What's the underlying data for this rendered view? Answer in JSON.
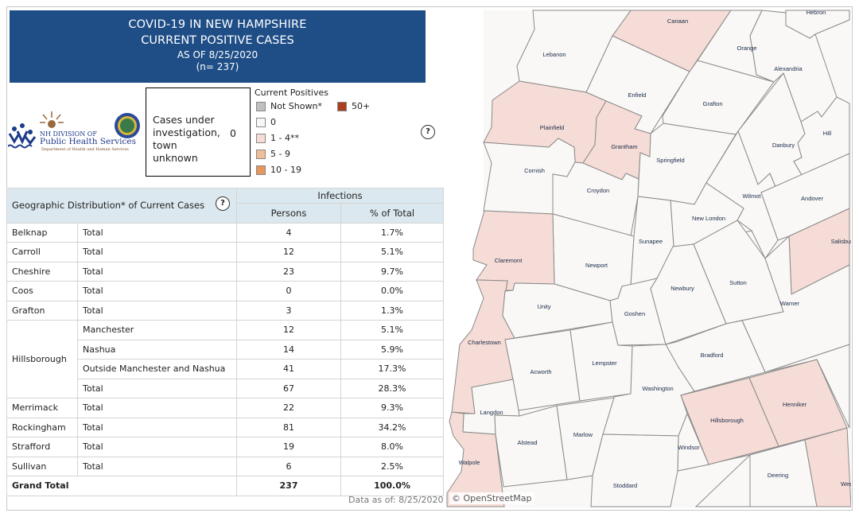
{
  "header": {
    "line1": "COVID-19 IN NEW HAMPSHIRE",
    "line2": "CURRENT POSITIVE CASES",
    "line3": "AS OF 8/25/2020",
    "line4": "(n= 237)"
  },
  "logo": {
    "line1": "NH DIVISION OF",
    "line2": "Public Health Services",
    "line3": "Department of Health and Human Services"
  },
  "investigation": {
    "label": "Cases under investigation, town unknown",
    "value": "0"
  },
  "legend": {
    "title": "Current Positives",
    "items": [
      {
        "label": "Not Shown*",
        "color": "#c0c0c0"
      },
      {
        "label": "0",
        "color": "#f9f8f6"
      },
      {
        "label": "1 - 4**",
        "color": "#f6dcd6"
      },
      {
        "label": "5 - 9",
        "color": "#f0bf97"
      },
      {
        "label": "10 - 19",
        "color": "#e8965a"
      },
      {
        "label": "50+",
        "color": "#a9401f"
      }
    ]
  },
  "help_icon": "?",
  "table": {
    "title": "Geographic Distribution* of Current Cases",
    "group_header": "Infections",
    "col_persons": "Persons",
    "col_pct": "% of Total",
    "rows": [
      {
        "county": "Belknap",
        "sub": "Total",
        "persons": "4",
        "pct": "1.7%"
      },
      {
        "county": "Carroll",
        "sub": "Total",
        "persons": "12",
        "pct": "5.1%"
      },
      {
        "county": "Cheshire",
        "sub": "Total",
        "persons": "23",
        "pct": "9.7%"
      },
      {
        "county": "Coos",
        "sub": "Total",
        "persons": "0",
        "pct": "0.0%"
      },
      {
        "county": "Grafton",
        "sub": "Total",
        "persons": "3",
        "pct": "1.3%"
      },
      {
        "county": "Hillsborough",
        "sub": "Manchester",
        "persons": "12",
        "pct": "5.1%"
      },
      {
        "county": "",
        "sub": "Nashua",
        "persons": "14",
        "pct": "5.9%"
      },
      {
        "county": "",
        "sub": "Outside Manchester and Nashua",
        "persons": "41",
        "pct": "17.3%"
      },
      {
        "county": "",
        "sub": "Total",
        "persons": "67",
        "pct": "28.3%"
      },
      {
        "county": "Merrimack",
        "sub": "Total",
        "persons": "22",
        "pct": "9.3%"
      },
      {
        "county": "Rockingham",
        "sub": "Total",
        "persons": "81",
        "pct": "34.2%"
      },
      {
        "county": "Strafford",
        "sub": "Total",
        "persons": "19",
        "pct": "8.0%"
      },
      {
        "county": "Sullivan",
        "sub": "Total",
        "persons": "6",
        "pct": "2.5%"
      }
    ],
    "grand_total": {
      "label": "Grand Total",
      "persons": "237",
      "pct": "100.0%"
    }
  },
  "data_as_of": "Data as of:  8/25/2020",
  "map": {
    "attribution": "© OpenStreetMap",
    "towns": [
      {
        "name": "Canaan",
        "cat": "1 - 4**"
      },
      {
        "name": "Lebanon",
        "cat": "0"
      },
      {
        "name": "Enfield",
        "cat": "0"
      },
      {
        "name": "Plainfield",
        "cat": "1 - 4**"
      },
      {
        "name": "Grantham",
        "cat": "1 - 4**"
      },
      {
        "name": "Cornish",
        "cat": "0"
      },
      {
        "name": "Croydon",
        "cat": "0"
      },
      {
        "name": "Springfield",
        "cat": "0"
      },
      {
        "name": "Grafton",
        "cat": "0"
      },
      {
        "name": "Orange",
        "cat": "0"
      },
      {
        "name": "Alexandria",
        "cat": "0"
      },
      {
        "name": "Hebron",
        "cat": "0"
      },
      {
        "name": "Danbury",
        "cat": "0"
      },
      {
        "name": "Hill",
        "cat": "0"
      },
      {
        "name": "Wilmot",
        "cat": "0"
      },
      {
        "name": "Andover",
        "cat": "0"
      },
      {
        "name": "Salisbury",
        "cat": "1 - 4**"
      },
      {
        "name": "New London",
        "cat": "0"
      },
      {
        "name": "Sunapee",
        "cat": "0"
      },
      {
        "name": "Newport",
        "cat": "0"
      },
      {
        "name": "Claremont",
        "cat": "1 - 4**"
      },
      {
        "name": "Charlestown",
        "cat": "1 - 4**"
      },
      {
        "name": "Unity",
        "cat": "0"
      },
      {
        "name": "Goshen",
        "cat": "0"
      },
      {
        "name": "Newbury",
        "cat": "0"
      },
      {
        "name": "Sutton",
        "cat": "0"
      },
      {
        "name": "Warner",
        "cat": "0"
      },
      {
        "name": "Acworth",
        "cat": "0"
      },
      {
        "name": "Lempster",
        "cat": "0"
      },
      {
        "name": "Washington",
        "cat": "0"
      },
      {
        "name": "Bradford",
        "cat": "0"
      },
      {
        "name": "Hillsborough",
        "cat": "1 - 4**"
      },
      {
        "name": "Henniker",
        "cat": "1 - 4**"
      },
      {
        "name": "Windsor",
        "cat": "0"
      },
      {
        "name": "Langdon",
        "cat": "0"
      },
      {
        "name": "Alstead",
        "cat": "0"
      },
      {
        "name": "Marlow",
        "cat": "0"
      },
      {
        "name": "Walpole",
        "cat": "1 - 4**"
      },
      {
        "name": "Stoddard",
        "cat": "0"
      },
      {
        "name": "Deering",
        "cat": "0"
      },
      {
        "name": "Weare",
        "cat": "1 - 4**"
      }
    ]
  }
}
